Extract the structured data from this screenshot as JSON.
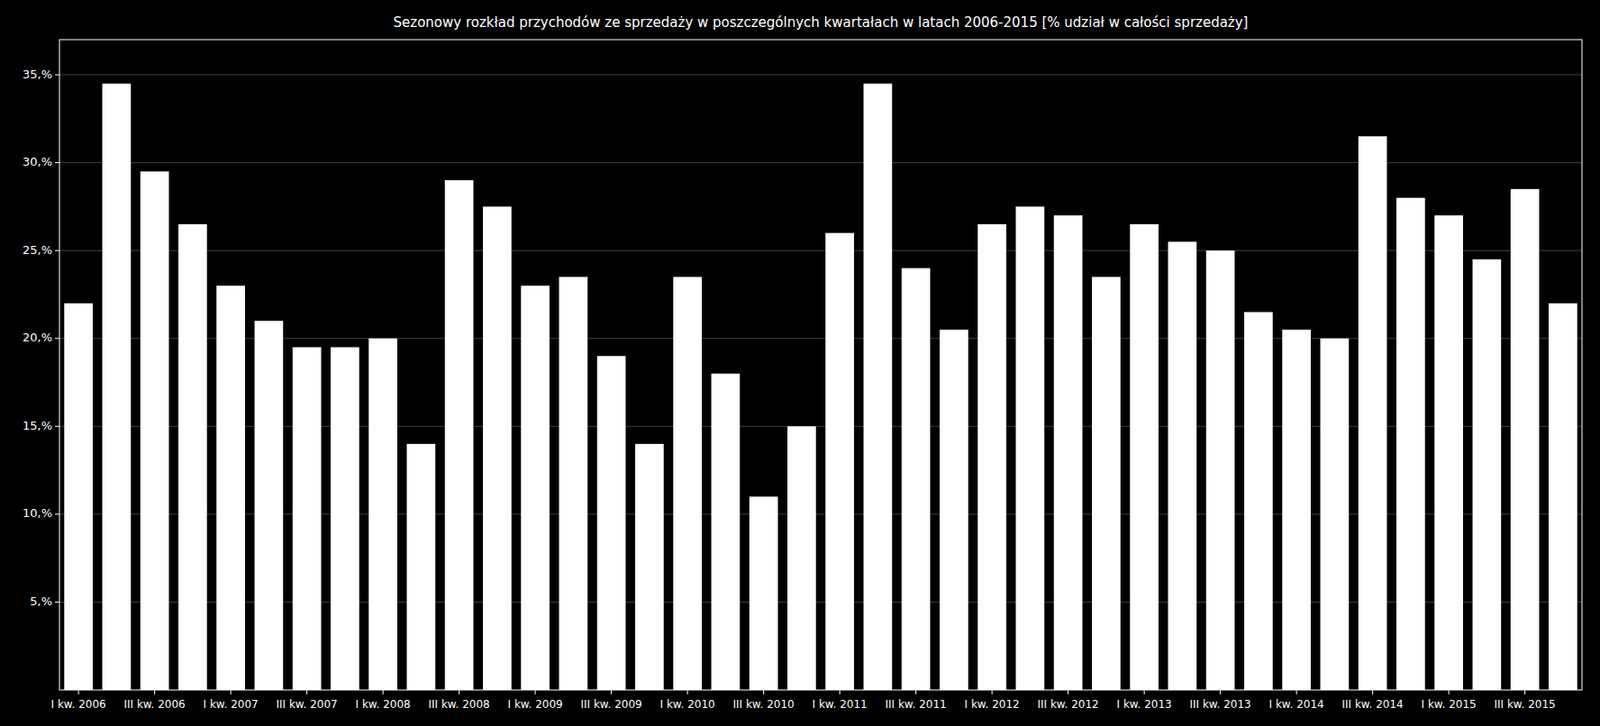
{
  "chart_data": {
    "type": "bar",
    "title": "Sezonowy rozkład przychodów ze sprzedaży w poszczególnych kwartałach w latach 2006-2015 [% udział w całości sprzedaży]",
    "categories": [
      "I kw. 2006",
      null,
      "III kw. 2006",
      null,
      "I kw. 2007",
      null,
      "III kw. 2007",
      null,
      "I kw. 2008",
      null,
      "III kw. 2008",
      null,
      "I kw. 2009",
      null,
      "III kw. 2009",
      null,
      "I kw. 2010",
      null,
      "III kw. 2010",
      null,
      "I kw. 2011",
      null,
      "III kw. 2011",
      null,
      "I kw. 2012",
      null,
      "III kw. 2012",
      null,
      "I kw. 2013",
      null,
      "III kw. 2013",
      null,
      "I kw. 2014",
      null,
      "III kw. 2014",
      null,
      "I kw. 2015",
      null,
      "III kw. 2015",
      null
    ],
    "values": [
      22.0,
      34.5,
      29.5,
      26.5,
      23.0,
      21.0,
      19.5,
      19.5,
      20.0,
      14.0,
      29.0,
      27.5,
      23.0,
      23.5,
      19.0,
      14.0,
      23.5,
      18.0,
      11.0,
      15.0,
      26.0,
      34.5,
      24.0,
      20.5,
      26.5,
      27.5,
      27.0,
      23.5,
      26.5,
      25.5,
      25.0,
      21.5,
      20.5,
      20.0,
      31.5,
      28.0,
      27.0,
      24.5,
      28.5,
      22.0
    ],
    "color": "#ffffff",
    "ylim": [
      0,
      37.0
    ],
    "yticks": [
      {
        "value": 5,
        "label": "5,%"
      },
      {
        "value": 10,
        "label": "10,%"
      },
      {
        "value": 15,
        "label": "15,%"
      },
      {
        "value": 20,
        "label": "20,%"
      },
      {
        "value": 25,
        "label": "25,%"
      },
      {
        "value": 30,
        "label": "30,%"
      },
      {
        "value": 35,
        "label": "35,%"
      }
    ],
    "grid": true
  }
}
